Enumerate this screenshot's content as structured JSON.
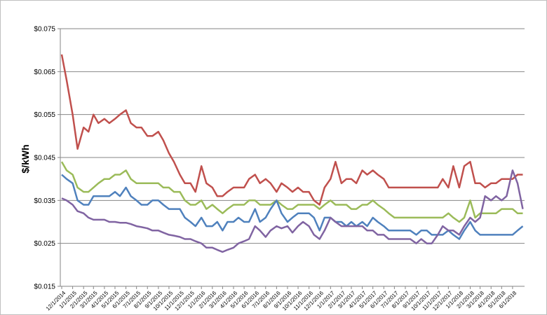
{
  "chart_data": {
    "type": "line",
    "title": "",
    "xlabel": "",
    "ylabel": "$/kWh",
    "ylim": [
      0.015,
      0.075
    ],
    "yticks": [
      "$0.015",
      "$0.025",
      "$0.035",
      "$0.045",
      "$0.055",
      "$0.065",
      "$0.075"
    ],
    "ytick_values": [
      0.015,
      0.025,
      0.035,
      0.045,
      0.055,
      0.065,
      0.075
    ],
    "xticks": [
      "12/1/2014",
      "1/1/2015",
      "2/1/2015",
      "3/1/2015",
      "4/1/2015",
      "5/1/2015",
      "6/1/2015",
      "7/1/2015",
      "8/1/2015",
      "9/1/2015",
      "10/1/2015",
      "11/1/2015",
      "12/1/2015",
      "1/1/2016",
      "2/1/2016",
      "3/1/2016",
      "4/1/2016",
      "5/1/2016",
      "6/1/2016",
      "7/1/2016",
      "8/1/2016",
      "9/1/2016",
      "10/1/2016",
      "11/1/2016",
      "12/1/2016",
      "1/1/2017",
      "2/1/2017",
      "3/1/2017",
      "4/1/2017",
      "5/1/2017",
      "6/1/2017",
      "7/1/2017",
      "8/1/2017",
      "9/1/2017",
      "10/1/2017",
      "11/1/2017",
      "12/1/2017",
      "1/1/2018",
      "2/1/2018",
      "3/1/2018",
      "4/1/2018",
      "5/1/2018",
      "6/1/2018"
    ],
    "grid": true,
    "legend": "none",
    "series": [
      {
        "color": "#c0504d",
        "x": [
          "12/1/2014",
          "12/15/2014",
          "1/1/2015",
          "1/15/2015",
          "2/1/2015",
          "2/15/2015",
          "3/1/2015",
          "3/15/2015",
          "4/1/2015",
          "4/15/2015",
          "5/1/2015",
          "5/15/2015",
          "6/1/2015",
          "6/15/2015",
          "7/1/2015",
          "7/15/2015",
          "8/1/2015",
          "8/15/2015",
          "9/1/2015",
          "9/15/2015",
          "10/1/2015",
          "10/15/2015",
          "11/1/2015",
          "11/15/2015",
          "12/1/2015",
          "12/15/2015",
          "1/1/2016",
          "1/15/2016",
          "2/1/2016",
          "2/15/2016",
          "3/1/2016",
          "3/15/2016",
          "4/1/2016",
          "4/15/2016",
          "5/1/2016",
          "5/15/2016",
          "6/1/2016",
          "6/15/2016",
          "7/1/2016",
          "7/15/2016",
          "8/1/2016",
          "8/15/2016",
          "9/1/2016",
          "9/15/2016",
          "10/1/2016",
          "10/15/2016",
          "11/1/2016",
          "11/15/2016",
          "12/1/2016",
          "12/15/2016",
          "1/1/2017",
          "1/15/2017",
          "2/1/2017",
          "2/15/2017",
          "3/1/2017",
          "3/15/2017",
          "4/1/2017",
          "4/15/2017",
          "5/1/2017",
          "5/15/2017",
          "6/1/2017",
          "6/15/2017",
          "7/1/2017",
          "7/15/2017",
          "8/1/2017",
          "8/15/2017",
          "9/1/2017",
          "9/15/2017",
          "10/1/2017",
          "10/15/2017",
          "11/1/2017",
          "11/15/2017",
          "12/1/2017",
          "12/15/2017",
          "1/1/2018",
          "1/15/2018",
          "2/1/2018",
          "2/15/2018",
          "3/1/2018",
          "3/15/2018",
          "4/1/2018",
          "4/15/2018",
          "5/1/2018",
          "5/15/2018",
          "6/1/2018",
          "6/15/2018",
          "6/30/2018"
        ],
        "values": [
          0.069,
          0.063,
          0.055,
          0.047,
          0.052,
          0.051,
          0.055,
          0.053,
          0.054,
          0.053,
          0.054,
          0.055,
          0.056,
          0.053,
          0.052,
          0.052,
          0.05,
          0.05,
          0.051,
          0.049,
          0.046,
          0.044,
          0.041,
          0.039,
          0.039,
          0.037,
          0.043,
          0.039,
          0.038,
          0.036,
          0.036,
          0.037,
          0.038,
          0.038,
          0.038,
          0.04,
          0.041,
          0.039,
          0.04,
          0.039,
          0.037,
          0.039,
          0.038,
          0.037,
          0.038,
          0.037,
          0.037,
          0.035,
          0.034,
          0.038,
          0.04,
          0.044,
          0.039,
          0.04,
          0.04,
          0.039,
          0.042,
          0.041,
          0.042,
          0.041,
          0.04,
          0.038,
          0.038,
          0.038,
          0.038,
          0.038,
          0.038,
          0.038,
          0.038,
          0.038,
          0.038,
          0.04,
          0.038,
          0.043,
          0.038,
          0.043,
          0.044,
          0.039,
          0.039,
          0.038,
          0.039,
          0.039,
          0.04,
          0.04,
          0.04,
          0.041,
          0.041
        ]
      },
      {
        "color": "#9bbb59",
        "x": [
          "12/1/2014",
          "12/15/2014",
          "1/1/2015",
          "1/15/2015",
          "2/1/2015",
          "2/15/2015",
          "3/1/2015",
          "3/15/2015",
          "4/1/2015",
          "4/15/2015",
          "5/1/2015",
          "5/15/2015",
          "6/1/2015",
          "6/15/2015",
          "7/1/2015",
          "7/15/2015",
          "8/1/2015",
          "8/15/2015",
          "9/1/2015",
          "9/15/2015",
          "10/1/2015",
          "10/15/2015",
          "11/1/2015",
          "11/15/2015",
          "12/1/2015",
          "12/15/2015",
          "1/1/2016",
          "1/15/2016",
          "2/1/2016",
          "2/15/2016",
          "3/1/2016",
          "3/15/2016",
          "4/1/2016",
          "4/15/2016",
          "5/1/2016",
          "5/15/2016",
          "6/1/2016",
          "6/15/2016",
          "7/1/2016",
          "7/15/2016",
          "8/1/2016",
          "8/15/2016",
          "9/1/2016",
          "9/15/2016",
          "10/1/2016",
          "10/15/2016",
          "11/1/2016",
          "11/15/2016",
          "12/1/2016",
          "12/15/2016",
          "1/1/2017",
          "1/15/2017",
          "2/1/2017",
          "2/15/2017",
          "3/1/2017",
          "3/15/2017",
          "4/1/2017",
          "4/15/2017",
          "5/1/2017",
          "5/15/2017",
          "6/1/2017",
          "6/15/2017",
          "7/1/2017",
          "7/15/2017",
          "8/1/2017",
          "8/15/2017",
          "9/1/2017",
          "9/15/2017",
          "10/1/2017",
          "10/15/2017",
          "11/1/2017",
          "11/15/2017",
          "12/1/2017",
          "12/15/2017",
          "1/1/2018",
          "1/15/2018",
          "2/1/2018",
          "2/15/2018",
          "3/1/2018",
          "3/15/2018",
          "4/1/2018",
          "4/15/2018",
          "5/1/2018",
          "5/15/2018",
          "6/1/2018",
          "6/15/2018",
          "6/30/2018"
        ],
        "values": [
          0.044,
          0.042,
          0.041,
          0.038,
          0.037,
          0.037,
          0.038,
          0.039,
          0.04,
          0.04,
          0.041,
          0.041,
          0.042,
          0.04,
          0.039,
          0.039,
          0.039,
          0.039,
          0.039,
          0.038,
          0.038,
          0.037,
          0.037,
          0.035,
          0.034,
          0.034,
          0.035,
          0.033,
          0.034,
          0.033,
          0.032,
          0.033,
          0.034,
          0.034,
          0.034,
          0.035,
          0.035,
          0.034,
          0.034,
          0.034,
          0.035,
          0.034,
          0.033,
          0.033,
          0.034,
          0.034,
          0.034,
          0.034,
          0.033,
          0.034,
          0.035,
          0.034,
          0.034,
          0.034,
          0.033,
          0.033,
          0.034,
          0.034,
          0.035,
          0.034,
          0.033,
          0.032,
          0.031,
          0.031,
          0.031,
          0.031,
          0.031,
          0.031,
          0.031,
          0.031,
          0.031,
          0.031,
          0.032,
          0.031,
          0.03,
          0.031,
          0.035,
          0.031,
          0.032,
          0.032,
          0.032,
          0.032,
          0.033,
          0.033,
          0.033,
          0.032,
          0.032
        ]
      },
      {
        "color": "#4f81bd",
        "x": [
          "12/1/2014",
          "12/15/2014",
          "1/1/2015",
          "1/15/2015",
          "2/1/2015",
          "2/15/2015",
          "3/1/2015",
          "3/15/2015",
          "4/1/2015",
          "4/15/2015",
          "5/1/2015",
          "5/15/2015",
          "6/1/2015",
          "6/15/2015",
          "7/1/2015",
          "7/15/2015",
          "8/1/2015",
          "8/15/2015",
          "9/1/2015",
          "9/15/2015",
          "10/1/2015",
          "10/15/2015",
          "11/1/2015",
          "11/15/2015",
          "12/1/2015",
          "12/15/2015",
          "1/1/2016",
          "1/15/2016",
          "2/1/2016",
          "2/15/2016",
          "3/1/2016",
          "3/15/2016",
          "4/1/2016",
          "4/15/2016",
          "5/1/2016",
          "5/15/2016",
          "6/1/2016",
          "6/15/2016",
          "7/1/2016",
          "7/15/2016",
          "8/1/2016",
          "8/15/2016",
          "9/1/2016",
          "9/15/2016",
          "10/1/2016",
          "10/15/2016",
          "11/1/2016",
          "11/15/2016",
          "12/1/2016",
          "12/15/2016",
          "1/1/2017",
          "1/15/2017",
          "2/1/2017",
          "2/15/2017",
          "3/1/2017",
          "3/15/2017",
          "4/1/2017",
          "4/15/2017",
          "5/1/2017",
          "5/15/2017",
          "6/1/2017",
          "6/15/2017",
          "7/1/2017",
          "7/15/2017",
          "8/1/2017",
          "8/15/2017",
          "9/1/2017",
          "9/15/2017",
          "10/1/2017",
          "10/15/2017",
          "11/1/2017",
          "11/15/2017",
          "12/1/2017",
          "12/15/2017",
          "1/1/2018",
          "1/15/2018",
          "2/1/2018",
          "2/15/2018",
          "3/1/2018",
          "3/15/2018",
          "4/1/2018",
          "4/15/2018",
          "5/1/2018",
          "5/15/2018",
          "6/1/2018",
          "6/15/2018",
          "6/30/2018"
        ],
        "values": [
          0.041,
          0.04,
          0.039,
          0.035,
          0.034,
          0.034,
          0.036,
          0.036,
          0.036,
          0.036,
          0.037,
          0.036,
          0.038,
          0.036,
          0.035,
          0.034,
          0.034,
          0.035,
          0.035,
          0.034,
          0.033,
          0.033,
          0.033,
          0.031,
          0.03,
          0.029,
          0.031,
          0.029,
          0.029,
          0.03,
          0.028,
          0.03,
          0.03,
          0.031,
          0.03,
          0.03,
          0.033,
          0.03,
          0.031,
          0.033,
          0.035,
          0.032,
          0.03,
          0.031,
          0.032,
          0.032,
          0.032,
          0.031,
          0.028,
          0.031,
          0.031,
          0.03,
          0.03,
          0.029,
          0.03,
          0.029,
          0.03,
          0.029,
          0.031,
          0.03,
          0.029,
          0.028,
          0.028,
          0.028,
          0.028,
          0.028,
          0.027,
          0.028,
          0.028,
          0.027,
          0.027,
          0.027,
          0.028,
          0.027,
          0.026,
          0.028,
          0.03,
          0.028,
          0.027,
          0.027,
          0.027,
          0.027,
          0.027,
          0.027,
          0.027,
          0.028,
          0.029
        ]
      },
      {
        "color": "#8064a2",
        "x": [
          "12/1/2014",
          "12/15/2014",
          "1/1/2015",
          "1/15/2015",
          "2/1/2015",
          "2/15/2015",
          "3/1/2015",
          "3/15/2015",
          "4/1/2015",
          "4/15/2015",
          "5/1/2015",
          "5/15/2015",
          "6/1/2015",
          "6/15/2015",
          "7/1/2015",
          "7/15/2015",
          "8/1/2015",
          "8/15/2015",
          "9/1/2015",
          "9/15/2015",
          "10/1/2015",
          "10/15/2015",
          "11/1/2015",
          "11/15/2015",
          "12/1/2015",
          "12/15/2015",
          "1/1/2016",
          "1/15/2016",
          "2/1/2016",
          "2/15/2016",
          "3/1/2016",
          "3/15/2016",
          "4/1/2016",
          "4/15/2016",
          "5/1/2016",
          "5/15/2016",
          "6/1/2016",
          "6/15/2016",
          "7/1/2016",
          "7/15/2016",
          "8/1/2016",
          "8/15/2016",
          "9/1/2016",
          "9/15/2016",
          "10/1/2016",
          "10/15/2016",
          "11/1/2016",
          "11/15/2016",
          "12/1/2016",
          "12/15/2016",
          "1/1/2017",
          "1/15/2017",
          "2/1/2017",
          "2/15/2017",
          "3/1/2017",
          "3/15/2017",
          "4/1/2017",
          "4/15/2017",
          "5/1/2017",
          "5/15/2017",
          "6/1/2017",
          "6/15/2017",
          "7/1/2017",
          "7/15/2017",
          "8/1/2017",
          "8/15/2017",
          "9/1/2017",
          "9/15/2017",
          "10/1/2017",
          "10/15/2017",
          "11/1/2017",
          "11/15/2017",
          "12/1/2017",
          "12/15/2017",
          "1/1/2018",
          "1/15/2018",
          "2/1/2018",
          "2/15/2018",
          "3/1/2018",
          "3/15/2018",
          "4/1/2018",
          "4/15/2018",
          "5/1/2018",
          "5/15/2018",
          "6/1/2018",
          "6/15/2018",
          "6/30/2018"
        ],
        "values": [
          0.0355,
          0.035,
          0.034,
          0.0325,
          0.032,
          0.031,
          0.0305,
          0.0305,
          0.0305,
          0.03,
          0.03,
          0.0298,
          0.0298,
          0.0295,
          0.029,
          0.0288,
          0.0285,
          0.028,
          0.028,
          0.0275,
          0.027,
          0.0268,
          0.0265,
          0.026,
          0.026,
          0.0255,
          0.025,
          0.024,
          0.024,
          0.0235,
          0.023,
          0.0235,
          0.024,
          0.025,
          0.0255,
          0.026,
          0.029,
          0.028,
          0.0265,
          0.028,
          0.029,
          0.0285,
          0.029,
          0.0275,
          0.029,
          0.03,
          0.029,
          0.027,
          0.026,
          0.028,
          0.031,
          0.03,
          0.029,
          0.029,
          0.029,
          0.029,
          0.029,
          0.028,
          0.028,
          0.027,
          0.027,
          0.026,
          0.026,
          0.026,
          0.026,
          0.026,
          0.025,
          0.026,
          0.025,
          0.025,
          0.027,
          0.029,
          0.028,
          0.028,
          0.027,
          0.029,
          0.031,
          0.03,
          0.031,
          0.036,
          0.035,
          0.036,
          0.035,
          0.036,
          0.042,
          0.039,
          0.033
        ]
      }
    ]
  }
}
